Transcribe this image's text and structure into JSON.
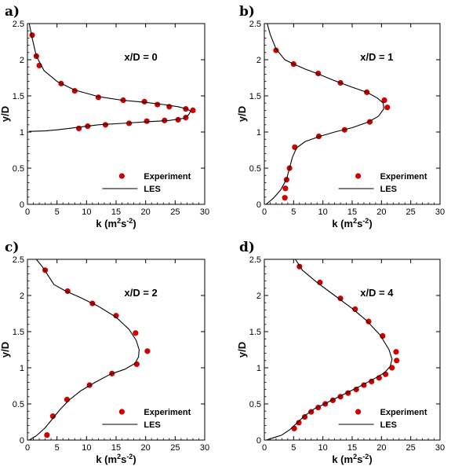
{
  "colors": {
    "marker": "#d00000",
    "line": "#000000",
    "axes": "#000000"
  },
  "chart_data": [
    {
      "panel": "a)",
      "type": "scatter",
      "annotation": "x/D = 0",
      "xlabel": {
        "base": "k (m",
        "sup": "2",
        "mid": "s",
        "sup2": "-2",
        "end": ")"
      },
      "ylabel": "y/D",
      "xlim": [
        0,
        30
      ],
      "ylim": [
        0,
        2.5
      ],
      "xticks": [
        0,
        5,
        10,
        15,
        20,
        25,
        30
      ],
      "yticks": [
        0,
        0.5,
        1,
        1.5,
        2,
        2.5
      ],
      "legend": {
        "position": "bottom-right",
        "experiment": "Experiment",
        "les": "LES"
      },
      "series": [
        {
          "name": "Experiment",
          "kind": "markers",
          "points": [
            [
              0.8,
              2.34
            ],
            [
              1.5,
              2.05
            ],
            [
              2.0,
              1.92
            ],
            [
              5.7,
              1.67
            ],
            [
              8.0,
              1.57
            ],
            [
              12.0,
              1.48
            ],
            [
              16.2,
              1.44
            ],
            [
              19.8,
              1.42
            ],
            [
              22.0,
              1.38
            ],
            [
              24.0,
              1.35
            ],
            [
              26.8,
              1.32
            ],
            [
              28.0,
              1.3
            ],
            [
              8.7,
              1.05
            ],
            [
              10.2,
              1.08
            ],
            [
              13.2,
              1.1
            ],
            [
              17.2,
              1.12
            ],
            [
              20.2,
              1.15
            ],
            [
              23.2,
              1.16
            ],
            [
              25.5,
              1.17
            ],
            [
              26.8,
              1.2
            ]
          ]
        },
        {
          "name": "LES",
          "kind": "line",
          "points": [
            [
              0.3,
              2.5
            ],
            [
              0.8,
              2.3
            ],
            [
              1.5,
              2.05
            ],
            [
              2.8,
              1.85
            ],
            [
              5.0,
              1.7
            ],
            [
              8.0,
              1.58
            ],
            [
              12.0,
              1.49
            ],
            [
              16.0,
              1.44
            ],
            [
              20.0,
              1.41
            ],
            [
              23.0,
              1.38
            ],
            [
              25.5,
              1.35
            ],
            [
              27.0,
              1.32
            ],
            [
              27.6,
              1.29
            ],
            [
              27.3,
              1.24
            ],
            [
              26.5,
              1.19
            ],
            [
              24.0,
              1.16
            ],
            [
              20.0,
              1.14
            ],
            [
              16.0,
              1.12
            ],
            [
              12.0,
              1.1
            ],
            [
              9.0,
              1.07
            ],
            [
              7.0,
              1.05
            ],
            [
              5.0,
              1.03
            ],
            [
              3.0,
              1.015
            ],
            [
              1.0,
              1.01
            ],
            [
              0.3,
              1.01
            ]
          ]
        }
      ]
    },
    {
      "panel": "b)",
      "type": "scatter",
      "annotation": "x/D = 1",
      "xlabel": {
        "base": "k (m",
        "sup": "2",
        "mid": "s",
        "sup2": "-2",
        "end": ")"
      },
      "ylabel": "y/D",
      "xlim": [
        0,
        30
      ],
      "ylim": [
        0,
        2.5
      ],
      "xticks": [
        0,
        5,
        10,
        15,
        20,
        25,
        30
      ],
      "yticks": [
        0,
        0.5,
        1,
        1.5,
        2,
        2.5
      ],
      "legend": {
        "position": "bottom-right",
        "experiment": "Experiment",
        "les": "LES"
      },
      "series": [
        {
          "name": "Experiment",
          "kind": "markers",
          "points": [
            [
              2.0,
              2.13
            ],
            [
              5.0,
              1.94
            ],
            [
              9.2,
              1.81
            ],
            [
              13.0,
              1.68
            ],
            [
              17.5,
              1.55
            ],
            [
              20.5,
              1.44
            ],
            [
              21.0,
              1.34
            ],
            [
              18.0,
              1.14
            ],
            [
              13.7,
              1.03
            ],
            [
              9.3,
              0.94
            ],
            [
              5.2,
              0.79
            ],
            [
              4.3,
              0.5
            ],
            [
              3.8,
              0.34
            ],
            [
              3.6,
              0.22
            ],
            [
              3.5,
              0.09
            ]
          ]
        },
        {
          "name": "LES",
          "kind": "line",
          "points": [
            [
              0.5,
              2.5
            ],
            [
              1.0,
              2.35
            ],
            [
              2.0,
              2.15
            ],
            [
              3.5,
              2.0
            ],
            [
              5.0,
              1.94
            ],
            [
              7.0,
              1.87
            ],
            [
              9.0,
              1.81
            ],
            [
              12.0,
              1.71
            ],
            [
              15.0,
              1.62
            ],
            [
              17.5,
              1.55
            ],
            [
              19.3,
              1.47
            ],
            [
              20.3,
              1.4
            ],
            [
              20.4,
              1.32
            ],
            [
              19.5,
              1.22
            ],
            [
              17.8,
              1.14
            ],
            [
              15.0,
              1.06
            ],
            [
              12.0,
              1.0
            ],
            [
              9.5,
              0.94
            ],
            [
              7.0,
              0.87
            ],
            [
              5.5,
              0.78
            ],
            [
              4.8,
              0.65
            ],
            [
              4.3,
              0.5
            ],
            [
              3.8,
              0.35
            ],
            [
              2.8,
              0.2
            ],
            [
              1.5,
              0.08
            ],
            [
              0.3,
              0.0
            ]
          ]
        }
      ]
    },
    {
      "panel": "c)",
      "type": "scatter",
      "annotation": "x/D = 2",
      "xlabel": {
        "base": "k (m",
        "sup": "2",
        "mid": "s",
        "sup2": "-2",
        "end": ")"
      },
      "ylabel": "y/D",
      "xlim": [
        0,
        30
      ],
      "ylim": [
        0,
        2.5
      ],
      "xticks": [
        0,
        5,
        10,
        15,
        20,
        25,
        30
      ],
      "yticks": [
        0,
        0.5,
        1,
        1.5,
        2,
        2.5
      ],
      "legend": {
        "position": "bottom-right",
        "experiment": "Experiment",
        "les": "LES"
      },
      "series": [
        {
          "name": "Experiment",
          "kind": "markers",
          "points": [
            [
              3.0,
              2.35
            ],
            [
              6.8,
              2.06
            ],
            [
              11.0,
              1.89
            ],
            [
              15.0,
              1.72
            ],
            [
              18.3,
              1.48
            ],
            [
              20.3,
              1.23
            ],
            [
              18.5,
              1.05
            ],
            [
              14.3,
              0.92
            ],
            [
              10.5,
              0.76
            ],
            [
              6.7,
              0.56
            ],
            [
              4.3,
              0.33
            ],
            [
              3.3,
              0.07
            ]
          ]
        },
        {
          "name": "LES",
          "kind": "line",
          "points": [
            [
              1.5,
              2.5
            ],
            [
              2.5,
              2.4
            ],
            [
              4.5,
              2.15
            ],
            [
              6.5,
              2.06
            ],
            [
              9.0,
              1.97
            ],
            [
              12.0,
              1.85
            ],
            [
              15.0,
              1.7
            ],
            [
              17.2,
              1.53
            ],
            [
              18.4,
              1.38
            ],
            [
              18.9,
              1.25
            ],
            [
              18.8,
              1.15
            ],
            [
              18.2,
              1.06
            ],
            [
              16.5,
              0.98
            ],
            [
              14.0,
              0.91
            ],
            [
              11.5,
              0.8
            ],
            [
              9.0,
              0.68
            ],
            [
              7.0,
              0.55
            ],
            [
              5.5,
              0.42
            ],
            [
              4.3,
              0.3
            ],
            [
              3.0,
              0.17
            ],
            [
              1.5,
              0.06
            ],
            [
              0.3,
              0.0
            ]
          ]
        }
      ]
    },
    {
      "panel": "d)",
      "type": "scatter",
      "annotation": "x/D = 4",
      "xlabel": {
        "base": "k (m",
        "sup": "2",
        "mid": "s",
        "sup2": "-2",
        "end": ")"
      },
      "ylabel": "y/D",
      "xlim": [
        0,
        30
      ],
      "ylim": [
        0,
        2.5
      ],
      "xticks": [
        0,
        5,
        10,
        15,
        20,
        25,
        30
      ],
      "yticks": [
        0,
        0.5,
        1,
        1.5,
        2,
        2.5
      ],
      "legend": {
        "position": "bottom-right",
        "experiment": "Experiment",
        "les": "LES"
      },
      "series": [
        {
          "name": "Experiment",
          "kind": "markers",
          "points": [
            [
              6.0,
              2.4
            ],
            [
              9.5,
              2.18
            ],
            [
              13.0,
              1.96
            ],
            [
              15.5,
              1.81
            ],
            [
              17.8,
              1.64
            ],
            [
              20.2,
              1.44
            ],
            [
              22.5,
              1.22
            ],
            [
              22.6,
              1.1
            ],
            [
              21.8,
              1.0
            ],
            [
              20.7,
              0.91
            ],
            [
              19.6,
              0.86
            ],
            [
              18.3,
              0.81
            ],
            [
              17.0,
              0.76
            ],
            [
              15.7,
              0.7
            ],
            [
              14.3,
              0.65
            ],
            [
              13.0,
              0.6
            ],
            [
              11.7,
              0.55
            ],
            [
              10.4,
              0.5
            ],
            [
              9.2,
              0.45
            ],
            [
              8.0,
              0.39
            ],
            [
              6.9,
              0.32
            ],
            [
              5.9,
              0.24
            ],
            [
              5.1,
              0.16
            ]
          ]
        },
        {
          "name": "LES",
          "kind": "line",
          "points": [
            [
              5.3,
              2.5
            ],
            [
              6.5,
              2.35
            ],
            [
              9.0,
              2.18
            ],
            [
              12.0,
              2.0
            ],
            [
              15.0,
              1.82
            ],
            [
              17.5,
              1.65
            ],
            [
              19.8,
              1.45
            ],
            [
              21.3,
              1.25
            ],
            [
              21.8,
              1.12
            ],
            [
              21.5,
              1.02
            ],
            [
              20.5,
              0.93
            ],
            [
              18.8,
              0.85
            ],
            [
              16.0,
              0.73
            ],
            [
              13.0,
              0.61
            ],
            [
              10.5,
              0.51
            ],
            [
              8.5,
              0.43
            ],
            [
              6.8,
              0.33
            ],
            [
              5.5,
              0.23
            ],
            [
              4.3,
              0.14
            ],
            [
              3.0,
              0.07
            ],
            [
              1.5,
              0.03
            ],
            [
              0.3,
              0.0
            ]
          ]
        }
      ]
    }
  ]
}
